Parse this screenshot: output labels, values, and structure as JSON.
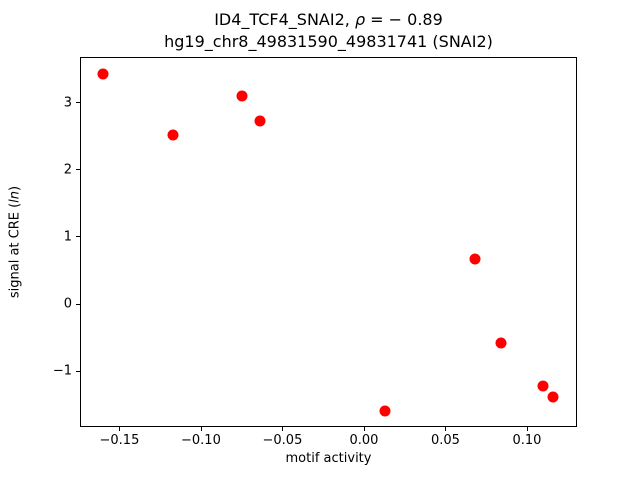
{
  "figure": {
    "title_line1": {
      "prefix": "ID4_TCF4_SNAI2, ",
      "rho": "ρ",
      "suffix": " = − 0.89"
    },
    "title_line2": "hg19_chr8_49831590_49831741 (SNAI2)",
    "xlabel": "motif activity",
    "ylabel": {
      "prefix": "signal at CRE (",
      "italic": "ln",
      "suffix": ")"
    }
  },
  "chart_data": {
    "type": "scatter",
    "title": "ID4_TCF4_SNAI2, ρ = −0.89",
    "subtitle": "hg19_chr8_49831590_49831741 (SNAI2)",
    "xlabel": "motif activity",
    "ylabel": "signal at CRE (ln)",
    "marker_color": "#ff0000",
    "marker_diameter_px": 11,
    "grid": false,
    "legend": null,
    "xlim": [
      -0.1742,
      0.1301
    ],
    "ylim": [
      -1.82,
      3.67
    ],
    "xticks": {
      "values": [
        -0.15,
        -0.1,
        -0.05,
        0.0,
        0.05,
        0.1
      ],
      "labels": [
        "−0.15",
        "−0.10",
        "−0.05",
        "0.00",
        "0.05",
        "0.10"
      ]
    },
    "yticks": {
      "values": [
        -1,
        0,
        1,
        2,
        3
      ],
      "labels": [
        "−1",
        "0",
        "1",
        "2",
        "3"
      ]
    },
    "points": [
      {
        "x": -0.16,
        "y": 3.42
      },
      {
        "x": -0.117,
        "y": 2.51
      },
      {
        "x": -0.075,
        "y": 3.09
      },
      {
        "x": -0.064,
        "y": 2.72
      },
      {
        "x": 0.013,
        "y": -1.59
      },
      {
        "x": 0.068,
        "y": 0.67
      },
      {
        "x": 0.084,
        "y": -0.59
      },
      {
        "x": 0.11,
        "y": -1.23
      },
      {
        "x": 0.116,
        "y": -1.39
      }
    ]
  }
}
